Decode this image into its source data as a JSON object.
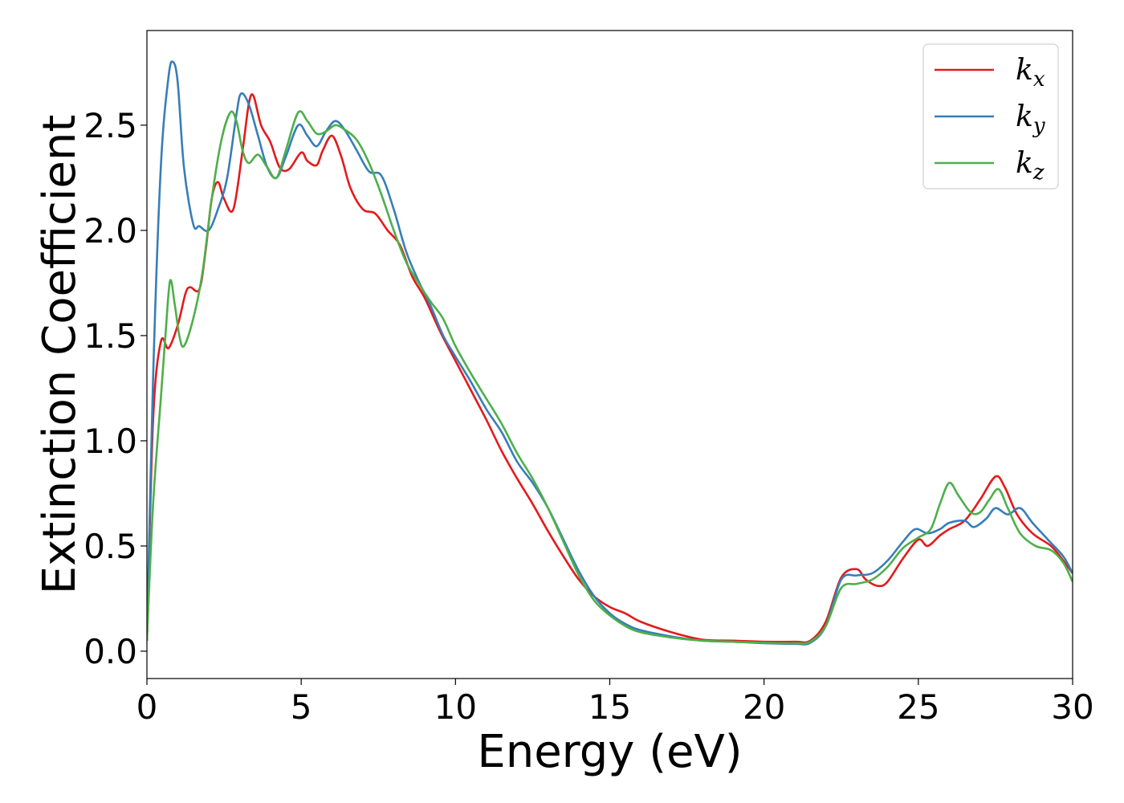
{
  "chart_data": {
    "type": "line",
    "title": "",
    "xlabel": "Energy (eV)",
    "ylabel": "Extinction Coefficient",
    "xlim": [
      0,
      30
    ],
    "ylim": [
      -0.13,
      2.95
    ],
    "xticks": [
      0,
      5,
      10,
      15,
      20,
      25,
      30
    ],
    "xtick_labels": [
      "0",
      "5",
      "10",
      "15",
      "20",
      "25",
      "30"
    ],
    "yticks": [
      0.0,
      0.5,
      1.0,
      1.5,
      2.0,
      2.5
    ],
    "ytick_labels": [
      "0.0",
      "0.5",
      "1.0",
      "1.5",
      "2.0",
      "2.5"
    ],
    "grid": false,
    "legend_position": "top-right",
    "series": [
      {
        "name": "k",
        "subscript": "x",
        "color": "#e41a1c",
        "points": [
          [
            0,
            0.05
          ],
          [
            0.2,
            1.1
          ],
          [
            0.45,
            1.47
          ],
          [
            0.7,
            1.44
          ],
          [
            1.0,
            1.55
          ],
          [
            1.25,
            1.7
          ],
          [
            1.4,
            1.73
          ],
          [
            1.7,
            1.72
          ],
          [
            1.9,
            1.9
          ],
          [
            2.1,
            2.15
          ],
          [
            2.3,
            2.23
          ],
          [
            2.5,
            2.15
          ],
          [
            2.8,
            2.1
          ],
          [
            3.1,
            2.38
          ],
          [
            3.3,
            2.6
          ],
          [
            3.45,
            2.64
          ],
          [
            3.7,
            2.5
          ],
          [
            4.0,
            2.42
          ],
          [
            4.3,
            2.3
          ],
          [
            4.6,
            2.29
          ],
          [
            5.0,
            2.37
          ],
          [
            5.2,
            2.33
          ],
          [
            5.5,
            2.31
          ],
          [
            5.7,
            2.38
          ],
          [
            6.0,
            2.45
          ],
          [
            6.3,
            2.35
          ],
          [
            6.6,
            2.2
          ],
          [
            7.0,
            2.1
          ],
          [
            7.4,
            2.08
          ],
          [
            7.8,
            2.0
          ],
          [
            8.2,
            1.93
          ],
          [
            8.6,
            1.78
          ],
          [
            9.0,
            1.68
          ],
          [
            9.5,
            1.52
          ],
          [
            10.0,
            1.38
          ],
          [
            10.5,
            1.24
          ],
          [
            11.0,
            1.1
          ],
          [
            11.5,
            0.95
          ],
          [
            12.0,
            0.82
          ],
          [
            12.5,
            0.7
          ],
          [
            13.0,
            0.57
          ],
          [
            13.5,
            0.45
          ],
          [
            14.0,
            0.34
          ],
          [
            14.5,
            0.26
          ],
          [
            15.0,
            0.21
          ],
          [
            15.5,
            0.18
          ],
          [
            16.0,
            0.14
          ],
          [
            17.0,
            0.09
          ],
          [
            18.0,
            0.055
          ],
          [
            19.0,
            0.05
          ],
          [
            20.0,
            0.045
          ],
          [
            21.0,
            0.045
          ],
          [
            21.5,
            0.05
          ],
          [
            22.0,
            0.14
          ],
          [
            22.5,
            0.35
          ],
          [
            23.0,
            0.39
          ],
          [
            23.3,
            0.34
          ],
          [
            23.7,
            0.31
          ],
          [
            24.0,
            0.33
          ],
          [
            24.5,
            0.44
          ],
          [
            25.0,
            0.53
          ],
          [
            25.3,
            0.5
          ],
          [
            25.7,
            0.55
          ],
          [
            26.0,
            0.58
          ],
          [
            26.5,
            0.62
          ],
          [
            27.0,
            0.72
          ],
          [
            27.5,
            0.83
          ],
          [
            27.8,
            0.78
          ],
          [
            28.2,
            0.65
          ],
          [
            28.7,
            0.56
          ],
          [
            29.3,
            0.5
          ],
          [
            29.7,
            0.43
          ],
          [
            30.0,
            0.37
          ]
        ]
      },
      {
        "name": "k",
        "subscript": "y",
        "color": "#377eb8",
        "points": [
          [
            0,
            0.05
          ],
          [
            0.2,
            1.3
          ],
          [
            0.45,
            2.3
          ],
          [
            0.7,
            2.73
          ],
          [
            0.85,
            2.8
          ],
          [
            1.0,
            2.7
          ],
          [
            1.2,
            2.3
          ],
          [
            1.5,
            2.03
          ],
          [
            1.7,
            2.02
          ],
          [
            2.0,
            2.0
          ],
          [
            2.3,
            2.1
          ],
          [
            2.6,
            2.25
          ],
          [
            2.9,
            2.55
          ],
          [
            3.05,
            2.65
          ],
          [
            3.3,
            2.6
          ],
          [
            3.6,
            2.45
          ],
          [
            3.9,
            2.3
          ],
          [
            4.2,
            2.25
          ],
          [
            4.5,
            2.35
          ],
          [
            4.9,
            2.5
          ],
          [
            5.2,
            2.45
          ],
          [
            5.5,
            2.4
          ],
          [
            5.8,
            2.47
          ],
          [
            6.1,
            2.52
          ],
          [
            6.4,
            2.48
          ],
          [
            6.8,
            2.38
          ],
          [
            7.2,
            2.28
          ],
          [
            7.6,
            2.26
          ],
          [
            8.0,
            2.1
          ],
          [
            8.4,
            1.9
          ],
          [
            8.8,
            1.76
          ],
          [
            9.2,
            1.64
          ],
          [
            9.6,
            1.5
          ],
          [
            10.0,
            1.4
          ],
          [
            10.5,
            1.28
          ],
          [
            11.0,
            1.15
          ],
          [
            11.5,
            1.04
          ],
          [
            12.0,
            0.9
          ],
          [
            12.5,
            0.8
          ],
          [
            13.0,
            0.68
          ],
          [
            13.5,
            0.53
          ],
          [
            14.0,
            0.38
          ],
          [
            14.5,
            0.26
          ],
          [
            15.0,
            0.18
          ],
          [
            15.5,
            0.13
          ],
          [
            16.0,
            0.1
          ],
          [
            17.0,
            0.07
          ],
          [
            18.0,
            0.05
          ],
          [
            19.0,
            0.045
          ],
          [
            20.0,
            0.038
          ],
          [
            21.0,
            0.035
          ],
          [
            21.5,
            0.04
          ],
          [
            22.0,
            0.12
          ],
          [
            22.5,
            0.34
          ],
          [
            23.0,
            0.36
          ],
          [
            23.5,
            0.37
          ],
          [
            24.0,
            0.43
          ],
          [
            24.5,
            0.52
          ],
          [
            24.9,
            0.58
          ],
          [
            25.3,
            0.56
          ],
          [
            25.7,
            0.58
          ],
          [
            26.0,
            0.61
          ],
          [
            26.5,
            0.62
          ],
          [
            26.8,
            0.59
          ],
          [
            27.2,
            0.63
          ],
          [
            27.5,
            0.68
          ],
          [
            27.9,
            0.65
          ],
          [
            28.3,
            0.68
          ],
          [
            28.7,
            0.61
          ],
          [
            29.2,
            0.53
          ],
          [
            29.7,
            0.45
          ],
          [
            30.0,
            0.37
          ]
        ]
      },
      {
        "name": "k",
        "subscript": "z",
        "color": "#4daf4a",
        "points": [
          [
            0,
            0.05
          ],
          [
            0.2,
            0.7
          ],
          [
            0.45,
            1.2
          ],
          [
            0.6,
            1.5
          ],
          [
            0.75,
            1.76
          ],
          [
            0.9,
            1.65
          ],
          [
            1.05,
            1.5
          ],
          [
            1.2,
            1.45
          ],
          [
            1.5,
            1.58
          ],
          [
            1.8,
            1.8
          ],
          [
            2.1,
            2.15
          ],
          [
            2.4,
            2.42
          ],
          [
            2.7,
            2.56
          ],
          [
            2.9,
            2.52
          ],
          [
            3.1,
            2.38
          ],
          [
            3.3,
            2.32
          ],
          [
            3.6,
            2.36
          ],
          [
            3.9,
            2.3
          ],
          [
            4.2,
            2.25
          ],
          [
            4.5,
            2.38
          ],
          [
            4.9,
            2.56
          ],
          [
            5.2,
            2.52
          ],
          [
            5.5,
            2.46
          ],
          [
            5.8,
            2.47
          ],
          [
            6.1,
            2.5
          ],
          [
            6.4,
            2.48
          ],
          [
            6.8,
            2.43
          ],
          [
            7.2,
            2.32
          ],
          [
            7.6,
            2.17
          ],
          [
            8.0,
            2.0
          ],
          [
            8.4,
            1.85
          ],
          [
            8.8,
            1.75
          ],
          [
            9.2,
            1.66
          ],
          [
            9.6,
            1.58
          ],
          [
            10.0,
            1.45
          ],
          [
            10.5,
            1.32
          ],
          [
            11.0,
            1.2
          ],
          [
            11.5,
            1.08
          ],
          [
            12.0,
            0.94
          ],
          [
            12.5,
            0.82
          ],
          [
            13.0,
            0.68
          ],
          [
            13.5,
            0.52
          ],
          [
            14.0,
            0.36
          ],
          [
            14.5,
            0.24
          ],
          [
            15.0,
            0.17
          ],
          [
            15.5,
            0.12
          ],
          [
            16.0,
            0.09
          ],
          [
            17.0,
            0.065
          ],
          [
            18.0,
            0.05
          ],
          [
            19.0,
            0.045
          ],
          [
            20.0,
            0.04
          ],
          [
            21.0,
            0.038
          ],
          [
            21.5,
            0.045
          ],
          [
            22.0,
            0.12
          ],
          [
            22.5,
            0.3
          ],
          [
            23.0,
            0.32
          ],
          [
            23.5,
            0.34
          ],
          [
            24.0,
            0.4
          ],
          [
            24.5,
            0.49
          ],
          [
            25.0,
            0.54
          ],
          [
            25.4,
            0.58
          ],
          [
            25.7,
            0.7
          ],
          [
            26.0,
            0.8
          ],
          [
            26.3,
            0.74
          ],
          [
            26.7,
            0.66
          ],
          [
            27.0,
            0.66
          ],
          [
            27.3,
            0.72
          ],
          [
            27.6,
            0.77
          ],
          [
            27.9,
            0.68
          ],
          [
            28.3,
            0.56
          ],
          [
            28.8,
            0.5
          ],
          [
            29.3,
            0.48
          ],
          [
            29.7,
            0.42
          ],
          [
            30.0,
            0.33
          ]
        ]
      }
    ]
  }
}
